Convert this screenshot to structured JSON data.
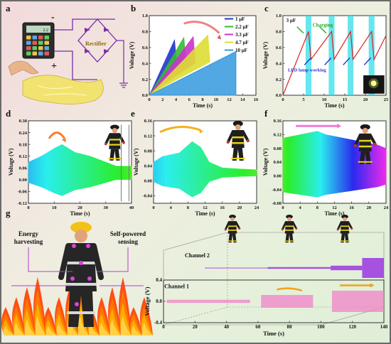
{
  "panel_labels": [
    "a",
    "b",
    "c",
    "d",
    "e",
    "f",
    "g"
  ],
  "panel_a": {
    "rectifier_label": "Rectifier",
    "minus": "-",
    "plus": "+",
    "meter_reading": "2.2"
  },
  "chart_data": [
    {
      "id": "b",
      "type": "line",
      "xlabel": "Time (s)",
      "ylabel": "Voltage (V)",
      "xlim": [
        0,
        16
      ],
      "ylim": [
        0.0,
        1.0
      ],
      "xticks": [
        "0",
        "2",
        "4",
        "6",
        "8",
        "10",
        "12",
        "14",
        "16"
      ],
      "yticks": [
        "0.0",
        "0.2",
        "0.4",
        "0.6",
        "0.8",
        "1.0"
      ],
      "legend_position": "top-right",
      "series": [
        {
          "name": "1 μF",
          "color": "#2233cc",
          "charge_end_s": 3.8,
          "peak_v": 0.7
        },
        {
          "name": "2.2 μF",
          "color": "#33bb33",
          "charge_end_s": 5.2,
          "peak_v": 0.73
        },
        {
          "name": "3.3 μF",
          "color": "#cc33cc",
          "charge_end_s": 6.6,
          "peak_v": 0.74
        },
        {
          "name": "4.7 μF",
          "color": "#dddd33",
          "charge_end_s": 8.8,
          "peak_v": 0.76
        },
        {
          "name": "10 μF",
          "color": "#3399dd",
          "charge_end_s": 13.0,
          "peak_v": 0.55
        }
      ]
    },
    {
      "id": "c",
      "type": "line",
      "xlabel": "Time (s)",
      "ylabel": "Voltage (V)",
      "xlim": [
        0,
        25
      ],
      "ylim": [
        0.0,
        1.0
      ],
      "xticks": [
        "0",
        "5",
        "10",
        "15",
        "20",
        "25"
      ],
      "yticks": [
        "0.0",
        "0.2",
        "0.4",
        "0.6",
        "0.8",
        "1.0"
      ],
      "series_label": "3  μF",
      "annotations": [
        "Charging",
        "LED lamp working"
      ],
      "peaks_s": [
        6.2,
        11.8,
        16.4,
        21.5
      ],
      "peak_v": 0.8,
      "discharge_v": 0.45
    },
    {
      "id": "d",
      "type": "line",
      "xlabel": "Time (s)",
      "ylabel": "Voltage (V)",
      "xlim": [
        0,
        40
      ],
      "ylim": [
        -0.12,
        0.3
      ],
      "xticks": [
        "0",
        "10",
        "20",
        "30",
        "40"
      ],
      "yticks": [
        "-0.12",
        "-0.06",
        "0.00",
        "0.06",
        "0.12",
        "0.18",
        "0.24",
        "0.30"
      ],
      "envelope": [
        [
          0,
          0.06
        ],
        [
          5,
          0.09
        ],
        [
          10,
          0.13
        ],
        [
          13,
          0.15
        ],
        [
          18,
          0.11
        ],
        [
          24,
          0.09
        ],
        [
          28,
          0.07
        ],
        [
          34,
          0.04
        ],
        [
          40,
          0.04
        ]
      ]
    },
    {
      "id": "e",
      "type": "line",
      "xlabel": "Time (s)",
      "ylabel": "Voltage (V)",
      "xlim": [
        0,
        24
      ],
      "ylim": [
        -0.06,
        0.16
      ],
      "xticks": [
        "0",
        "4",
        "8",
        "12",
        "16",
        "20",
        "24"
      ],
      "yticks": [
        "-0.04",
        "0.00",
        "0.04",
        "0.08",
        "0.12",
        "0.16"
      ],
      "envelope": [
        [
          0,
          0.03
        ],
        [
          2,
          0.045
        ],
        [
          6,
          0.055
        ],
        [
          9,
          0.085
        ],
        [
          11,
          0.07
        ],
        [
          13,
          0.03
        ],
        [
          16,
          0.015
        ],
        [
          20,
          0.012
        ],
        [
          24,
          0.01
        ]
      ]
    },
    {
      "id": "f",
      "type": "line",
      "xlabel": "Time (s)",
      "ylabel": "Voltage (V)",
      "xlim": [
        0,
        24
      ],
      "ylim": [
        -0.08,
        0.16
      ],
      "xticks": [
        "0",
        "4",
        "8",
        "12",
        "16",
        "20",
        "24"
      ],
      "yticks": [
        "-0.08",
        "-0.04",
        "0.00",
        "0.04",
        "0.08",
        "0.12",
        "0.16"
      ],
      "envelope": [
        [
          0,
          0.09
        ],
        [
          4,
          0.1
        ],
        [
          8,
          0.11
        ],
        [
          10,
          0.1
        ],
        [
          14,
          0.09
        ],
        [
          18,
          0.08
        ],
        [
          22,
          0.07
        ],
        [
          24,
          0.06
        ]
      ]
    },
    {
      "id": "g",
      "type": "line",
      "xlabel": "Time (s)",
      "ylabel": "Voltage (V)",
      "xlim": [
        0,
        140
      ],
      "ylim": [
        -0.4,
        0.4
      ],
      "xticks": [
        "0",
        "20",
        "40",
        "60",
        "80",
        "100",
        "120",
        "140"
      ],
      "yticks": [
        "-0.4",
        "0.0",
        "0.4"
      ],
      "series": [
        {
          "name": "Channel 1",
          "color": "#f08ac8",
          "bursts": [
            [
              0,
              55,
              0.03
            ],
            [
              60,
              95,
              0.12
            ],
            [
              105,
              140,
              0.2
            ]
          ]
        },
        {
          "name": "Channel 2",
          "color": "#a040e0",
          "bursts": [
            [
              0,
              40,
              0.01
            ],
            [
              40,
              80,
              0.03
            ],
            [
              80,
              100,
              0.08
            ],
            [
              100,
              140,
              0.35
            ]
          ]
        }
      ]
    }
  ],
  "panel_g": {
    "energy_harvesting": "Energy\nharvesting",
    "self_powered": "Self-powered\nsensing",
    "channel1": "Channel 1",
    "channel2": "Channel 2"
  }
}
